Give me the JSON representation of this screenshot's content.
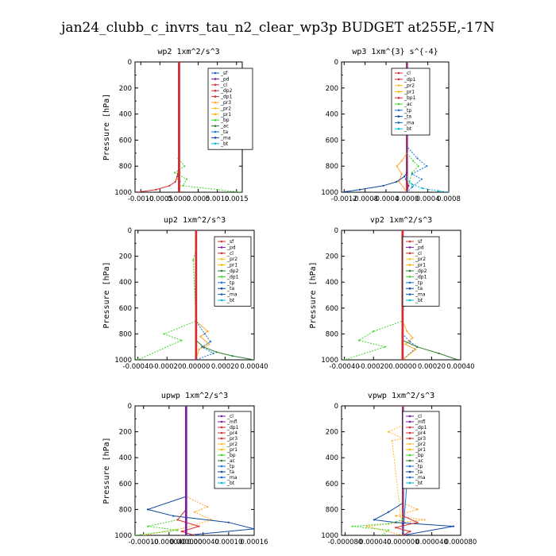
{
  "figure": {
    "title": "jan24_clubb_c_invrs_tau_n2_clear_wp3p  BUDGET at255E,-17N"
  },
  "chart_data": [
    {
      "type": "line",
      "title": "wp2   1xm^2/s^3",
      "ylabel": "Pressure [hPa]",
      "ylim": [
        1000,
        0
      ],
      "yticks": [
        "0",
        "200",
        "400",
        "600",
        "800",
        "1000"
      ],
      "xlim": [
        -0.00115,
        0.00165
      ],
      "xticks": [
        {
          "v": -0.001,
          "t": "-0.0010"
        },
        {
          "v": -0.0005,
          "t": "-0.0005"
        },
        {
          "v": 0,
          "t": "0.0000"
        },
        {
          "v": 0.0005,
          "t": "0.0005"
        },
        {
          "v": 0.001,
          "t": "0.0010"
        },
        {
          "v": 0.0015,
          "t": "0.0015"
        }
      ],
      "legend": [
        "_sf",
        "_pd",
        "_cl",
        "_dp2",
        "_dp1",
        "_pr3",
        "_pr2",
        "_pr1",
        "_bp",
        "_ac",
        "_ta",
        "_ma",
        "_bt"
      ],
      "legend_colors": [
        "#1f5fd6",
        "#7b1fa2",
        "#d32f2f",
        "#d32f2f",
        "#d32f2f",
        "#ffa726",
        "#fbc02d",
        "#ffb300",
        "#43d62f",
        "#2e7d32",
        "#1976d2",
        "#0d47a1",
        "#00bcd4"
      ],
      "series": [
        {
          "color": "#7b1fa2",
          "x": [
            0,
            0,
            0,
            0,
            0,
            0,
            0,
            0
          ],
          "y": [
            0,
            200,
            400,
            600,
            750,
            850,
            950,
            1000
          ]
        },
        {
          "color": "#43d62f",
          "x": [
            0,
            0,
            -2e-05,
            0.00014,
            -0.00011,
            0.0002,
            0.0001,
            0.0016
          ],
          "y": [
            0,
            600,
            740,
            800,
            850,
            900,
            950,
            1000
          ]
        },
        {
          "color": "#d32f2f",
          "x": [
            0,
            0,
            -5e-05,
            -0.0001,
            -0.00025,
            -0.0006,
            -0.0011
          ],
          "y": [
            0,
            800,
            880,
            920,
            950,
            980,
            1000
          ]
        },
        {
          "color": "#ffa726",
          "x": [
            0,
            0,
            2e-05,
            -4e-05,
            3e-05,
            0.0
          ],
          "y": [
            0,
            800,
            850,
            900,
            950,
            1000
          ]
        },
        {
          "color": "#1976d2",
          "x": [
            0,
            0,
            -2e-05,
            2e-05,
            -1e-05,
            0
          ],
          "y": [
            0,
            820,
            870,
            920,
            970,
            1000
          ]
        },
        {
          "color": "#d32f2f",
          "x": [
            0,
            0,
            0,
            0,
            0,
            0
          ],
          "y": [
            0,
            300,
            600,
            800,
            950,
            1000
          ]
        }
      ]
    },
    {
      "type": "line",
      "title": "wp3   1xm^{3} s^{-4}",
      "ylabel": "",
      "ylim": [
        1000,
        0
      ],
      "yticks": [
        "0",
        "200",
        "400",
        "600",
        "800",
        "1000"
      ],
      "xlim": [
        -0.00125,
        0.0008
      ],
      "xticks": [
        {
          "v": -0.0012,
          "t": "-0.0012"
        },
        {
          "v": -0.0008,
          "t": "-0.0008"
        },
        {
          "v": -0.0004,
          "t": "-0.0004"
        },
        {
          "v": 0,
          "t": "0.0000"
        },
        {
          "v": 0.0004,
          "t": "0.0004"
        },
        {
          "v": 0.0008,
          "t": "0.0008"
        }
      ],
      "legend": [
        "_cl",
        "_dp1",
        "_pr2",
        "_pr1",
        "_bp1",
        "_ac",
        "_tp",
        "_ta",
        "_ma",
        "_bt"
      ],
      "legend_colors": [
        "#d32f2f",
        "#d32f2f",
        "#fbc02d",
        "#ffb300",
        "#d32f2f",
        "#43d62f",
        "#1976d2",
        "#0d47a1",
        "#1565c0",
        "#00bcd4"
      ],
      "series": [
        {
          "color": "#d32f2f",
          "x": [
            0,
            0,
            0,
            0,
            0,
            0
          ],
          "y": [
            0,
            300,
            600,
            800,
            950,
            1000
          ]
        },
        {
          "color": "#43d62f",
          "x": [
            0,
            0,
            0.00012,
            0.00022,
            0.0001,
            5e-05,
            0
          ],
          "y": [
            0,
            700,
            760,
            800,
            850,
            920,
            1000
          ]
        },
        {
          "color": "#ffa726",
          "x": [
            0,
            0,
            -0.0001,
            -0.00019,
            -0.0001,
            -0.00015,
            0
          ],
          "y": [
            0,
            700,
            760,
            800,
            860,
            920,
            1000
          ]
        },
        {
          "color": "#1976d2",
          "x": [
            0,
            0,
            0.0002,
            0.00038,
            0.0001,
            0.00028,
            0.0001,
            0
          ],
          "y": [
            0,
            650,
            740,
            800,
            860,
            900,
            960,
            1000
          ]
        },
        {
          "color": "#0d47a1",
          "x": [
            0,
            0,
            -5e-05,
            -0.0002,
            -0.00045,
            -0.0009,
            -0.00125
          ],
          "y": [
            0,
            850,
            880,
            920,
            950,
            980,
            1000
          ]
        },
        {
          "color": "#00bcd4",
          "x": [
            0,
            0,
            0.0001,
            0.0003,
            0.0006,
            0.0008
          ],
          "y": [
            0,
            900,
            940,
            970,
            990,
            1000
          ]
        },
        {
          "color": "#7b1fa2",
          "x": [
            0,
            0,
            -2e-05,
            3e-05,
            0
          ],
          "y": [
            0,
            850,
            900,
            950,
            1000
          ]
        }
      ]
    },
    {
      "type": "line",
      "title": "up2   1xm^2/s^3",
      "ylabel": "Pressure [hPa]",
      "ylim": [
        1000,
        0
      ],
      "yticks": [
        "0",
        "200",
        "400",
        "600",
        "800",
        "1000"
      ],
      "xlim": [
        -0.00042,
        0.0004
      ],
      "xticks": [
        {
          "v": -0.0004,
          "t": "-0.00040"
        },
        {
          "v": -0.0002,
          "t": "-0.00020"
        },
        {
          "v": 0,
          "t": "0.00000"
        },
        {
          "v": 0.0002,
          "t": "0.00020"
        },
        {
          "v": 0.0004,
          "t": "0.00040"
        }
      ],
      "legend": [
        "_sf",
        "_pd",
        "_cl",
        "_pr2",
        "_pr1",
        "_dp2",
        "_dp1",
        "_tp",
        "_ta",
        "_ma",
        "_bt"
      ],
      "legend_colors": [
        "#d32f2f",
        "#7b1fa2",
        "#d32f2f",
        "#fbc02d",
        "#ffb300",
        "#2e7d32",
        "#43d62f",
        "#1976d2",
        "#0d47a1",
        "#1565c0",
        "#00bcd4"
      ],
      "series": [
        {
          "color": "#7b1fa2",
          "x": [
            0,
            0,
            0,
            0,
            0,
            0
          ],
          "y": [
            0,
            300,
            600,
            800,
            950,
            1000
          ]
        },
        {
          "color": "#43d62f",
          "x": [
            0,
            0,
            -2e-05,
            0,
            -0.00022,
            -0.0001,
            -0.0004
          ],
          "y": [
            0,
            150,
            230,
            700,
            800,
            850,
            1000
          ]
        },
        {
          "color": "#ffa726",
          "x": [
            0,
            0,
            8e-05,
            3e-05,
            9e-05,
            2e-05,
            0
          ],
          "y": [
            0,
            700,
            780,
            820,
            880,
            920,
            1000
          ]
        },
        {
          "color": "#1976d2",
          "x": [
            0,
            0,
            6e-05,
            0.0001,
            4e-05,
            0.00012,
            0
          ],
          "y": [
            0,
            700,
            800,
            860,
            900,
            950,
            1000
          ]
        },
        {
          "color": "#2e7d32",
          "x": [
            0,
            0,
            5e-05,
            0.00014,
            0.00025,
            0.0004
          ],
          "y": [
            0,
            850,
            900,
            940,
            970,
            1000
          ]
        },
        {
          "color": "#d32f2f",
          "x": [
            0,
            0,
            0,
            0,
            0,
            0
          ],
          "y": [
            0,
            300,
            600,
            800,
            950,
            1000
          ]
        }
      ]
    },
    {
      "type": "line",
      "title": "vp2   1xm^2/s^3",
      "ylabel": "Pressure [hPa]",
      "ylim": [
        1000,
        0
      ],
      "yticks": [
        "0",
        "200",
        "400",
        "600",
        "800",
        "1000"
      ],
      "xlim": [
        -0.00042,
        0.0004
      ],
      "xticks": [
        {
          "v": -0.0004,
          "t": "-0.00040"
        },
        {
          "v": -0.0002,
          "t": "-0.00020"
        },
        {
          "v": 0,
          "t": "0.00000"
        },
        {
          "v": 0.0002,
          "t": "0.00020"
        },
        {
          "v": 0.0004,
          "t": "0.00040"
        }
      ],
      "legend": [
        "_sf",
        "_pd",
        "_cl",
        "_pr2",
        "_pr1",
        "_dp2",
        "_dp1",
        "_tp",
        "_ta",
        "_ma",
        "_bt"
      ],
      "legend_colors": [
        "#d32f2f",
        "#7b1fa2",
        "#d32f2f",
        "#fbc02d",
        "#ffb300",
        "#2e7d32",
        "#43d62f",
        "#1976d2",
        "#0d47a1",
        "#1565c0",
        "#00bcd4"
      ],
      "series": [
        {
          "color": "#7b1fa2",
          "x": [
            0,
            0,
            0,
            0,
            0,
            0
          ],
          "y": [
            0,
            300,
            600,
            800,
            950,
            1000
          ]
        },
        {
          "color": "#1976d2",
          "x": [
            0,
            0,
            4e-05,
            0.0,
            3e-05,
            0,
            0,
            5e-05,
            0.0001,
            0
          ],
          "y": [
            0,
            150,
            200,
            230,
            250,
            700,
            800,
            860,
            900,
            1000
          ]
        },
        {
          "color": "#ffa726",
          "x": [
            0,
            0,
            3e-05,
            7e-05,
            2e-05,
            9e-05,
            0
          ],
          "y": [
            0,
            700,
            780,
            830,
            880,
            920,
            1000
          ]
        },
        {
          "color": "#43d62f",
          "x": [
            0,
            0,
            -0.0002,
            -0.0003,
            -0.00012,
            -0.0004
          ],
          "y": [
            0,
            700,
            780,
            850,
            900,
            1000
          ]
        },
        {
          "color": "#2e7d32",
          "x": [
            0,
            0,
            0.0001,
            0.00025,
            0.00038
          ],
          "y": [
            0,
            850,
            900,
            950,
            1000
          ]
        },
        {
          "color": "#d32f2f",
          "x": [
            0,
            0,
            0,
            0,
            0,
            0
          ],
          "y": [
            0,
            300,
            600,
            800,
            950,
            1000
          ]
        }
      ]
    },
    {
      "type": "line",
      "title": "upwp   1xm^2/s^3",
      "ylabel": "Pressure [hPa]",
      "ylim": [
        1000,
        0
      ],
      "yticks": [
        "0",
        "200",
        "400",
        "600",
        "800",
        "1000"
      ],
      "xlim": [
        -0.00012,
        0.00016
      ],
      "xticks": [
        {
          "v": -0.0001,
          "t": "-0.00010"
        },
        {
          "v": -4e-05,
          "t": "-0.000040"
        },
        {
          "v": 0,
          "t": "0.000000"
        },
        {
          "v": 4e-05,
          "t": "0.000040"
        },
        {
          "v": 0.0001,
          "t": "0.00010"
        },
        {
          "v": 0.00016,
          "t": "0.00016"
        }
      ],
      "legend": [
        "_cl",
        "_mfl",
        "_dp1",
        "_pr4",
        "_pr3",
        "_pr2",
        "_pr1",
        "_bp",
        "_ac",
        "_tp",
        "_ta",
        "_ma",
        "_bt"
      ],
      "legend_colors": [
        "#7b1fa2",
        "#7b1fa2",
        "#d32f2f",
        "#d32f2f",
        "#d32f2f",
        "#fbc02d",
        "#ffb300",
        "#43d62f",
        "#2e7d32",
        "#1976d2",
        "#0d47a1",
        "#1565c0",
        "#00bcd4"
      ],
      "series": [
        {
          "color": "#7b1fa2",
          "x": [
            0,
            0,
            0,
            0,
            0,
            0
          ],
          "y": [
            0,
            300,
            600,
            800,
            950,
            1000
          ]
        },
        {
          "color": "#ffa726",
          "x": [
            0,
            0,
            5e-05,
            2e-05,
            6e-05,
            0,
            -0.0001
          ],
          "y": [
            0,
            700,
            780,
            820,
            880,
            940,
            1000
          ]
        },
        {
          "color": "#0d47a1",
          "x": [
            0,
            0,
            -9e-05,
            -3e-05,
            0.0001,
            0.00016,
            0
          ],
          "y": [
            0,
            700,
            800,
            850,
            900,
            950,
            1000
          ]
        },
        {
          "color": "#43d62f",
          "x": [
            0,
            0,
            -2e-05,
            -9e-05,
            -2e-05,
            -0.00012
          ],
          "y": [
            0,
            800,
            880,
            930,
            960,
            1000
          ]
        },
        {
          "color": "#d32f2f",
          "x": [
            0,
            0,
            -2e-05,
            3e-05,
            -1e-05,
            2e-05
          ],
          "y": [
            0,
            800,
            880,
            930,
            970,
            1000
          ]
        },
        {
          "color": "#7b1fa2",
          "x": [
            0,
            0,
            0,
            0,
            0,
            0
          ],
          "y": [
            0,
            300,
            600,
            800,
            950,
            1000
          ]
        }
      ]
    },
    {
      "type": "line",
      "title": "vpwp   1xm^2/s^3",
      "ylabel": "",
      "ylim": [
        1000,
        0
      ],
      "yticks": [
        "0",
        "200",
        "400",
        "600",
        "800",
        "1000"
      ],
      "xlim": [
        -8.5e-05,
        8e-05
      ],
      "xticks": [
        {
          "v": -8e-05,
          "t": "-0.000080"
        },
        {
          "v": -4e-05,
          "t": "-0.000040"
        },
        {
          "v": 0,
          "t": "0.000000"
        },
        {
          "v": 4e-05,
          "t": "0.000040"
        },
        {
          "v": 8e-05,
          "t": "0.000080"
        }
      ],
      "legend": [
        "_cl",
        "_mfl",
        "_dp1",
        "_pr4",
        "_pr3",
        "_pr2",
        "_pr1",
        "_bp",
        "_ac",
        "_tp",
        "_ta",
        "_ma",
        "_bt"
      ],
      "legend_colors": [
        "#7b1fa2",
        "#7b1fa2",
        "#d32f2f",
        "#d32f2f",
        "#d32f2f",
        "#fbc02d",
        "#ffb300",
        "#43d62f",
        "#2e7d32",
        "#1976d2",
        "#0d47a1",
        "#1565c0",
        "#00bcd4"
      ],
      "series": [
        {
          "color": "#7b1fa2",
          "x": [
            0,
            0,
            0,
            0,
            0,
            0
          ],
          "y": [
            0,
            300,
            600,
            800,
            950,
            1000
          ]
        },
        {
          "color": "#fbc02d",
          "x": [
            0,
            0,
            -2e-05,
            0.0,
            -1.5e-05,
            0
          ],
          "y": [
            0,
            150,
            200,
            250,
            270,
            1000
          ]
        },
        {
          "color": "#1976d2",
          "x": [
            0,
            0,
            1e-05,
            0.0,
            1e-05,
            0
          ],
          "y": [
            0,
            150,
            200,
            240,
            270,
            1000
          ]
        },
        {
          "color": "#ffa726",
          "x": [
            0,
            0,
            2e-05,
            -1e-05,
            3e-05,
            -5e-05,
            0
          ],
          "y": [
            0,
            750,
            800,
            850,
            880,
            930,
            1000
          ]
        },
        {
          "color": "#0d47a1",
          "x": [
            0,
            0,
            -2e-05,
            -4e-05,
            -1e-05,
            7e-05,
            0
          ],
          "y": [
            0,
            750,
            820,
            880,
            900,
            930,
            1000
          ]
        },
        {
          "color": "#43d62f",
          "x": [
            0,
            0,
            -2e-05,
            -7e-05,
            -2e-05,
            -3e-05
          ],
          "y": [
            0,
            880,
            910,
            930,
            960,
            1000
          ]
        },
        {
          "color": "#d32f2f",
          "x": [
            0,
            0,
            2e-05,
            -1e-05,
            1e-05,
            0
          ],
          "y": [
            0,
            850,
            900,
            940,
            970,
            1000
          ]
        }
      ]
    }
  ]
}
